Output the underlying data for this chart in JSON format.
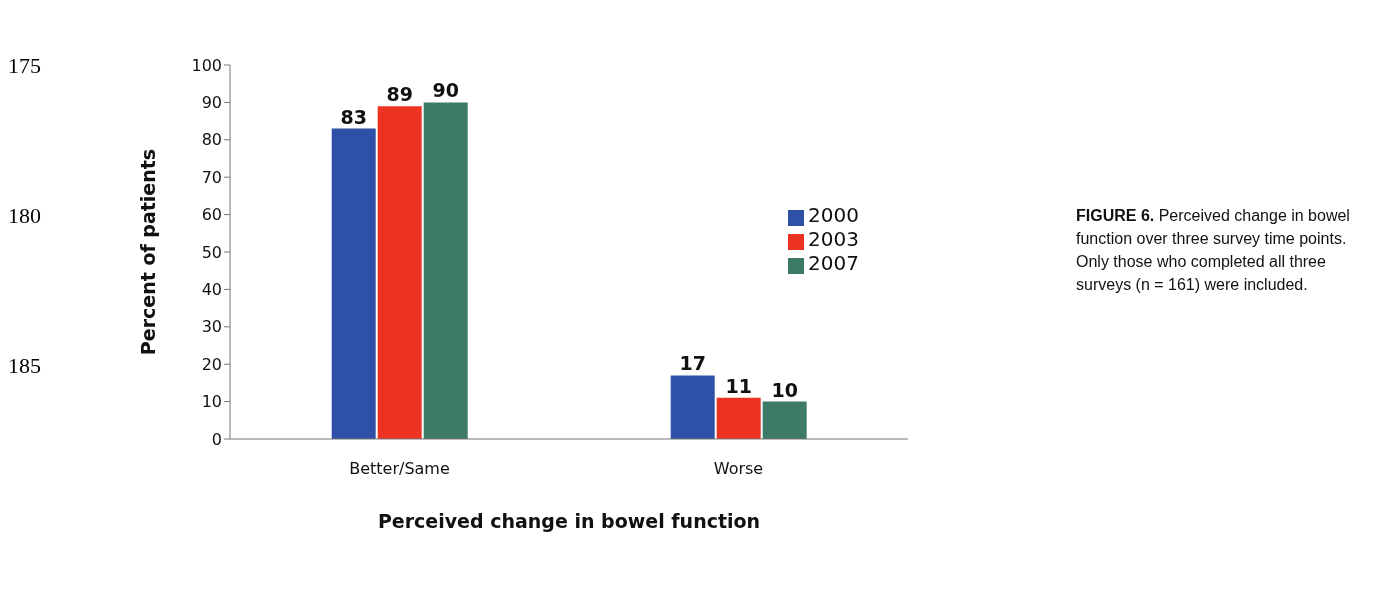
{
  "chart_data": {
    "type": "bar",
    "xlabel": "Perceived change in bowel function",
    "ylabel": "Percent of patients",
    "categories": [
      "Better/Same",
      "Worse"
    ],
    "series": [
      {
        "name": "2000",
        "color": "#2e50a6",
        "values": [
          83,
          17
        ]
      },
      {
        "name": "2003",
        "color": "#ec3322",
        "values": [
          89,
          11
        ]
      },
      {
        "name": "2007",
        "color": "#3d7a67",
        "values": [
          90,
          10
        ]
      }
    ],
    "ylim": [
      0,
      100
    ],
    "yticks": [
      0,
      10,
      20,
      30,
      40,
      50,
      60,
      70,
      80,
      90,
      100
    ],
    "grid": false,
    "legend": "right",
    "data_labels": true,
    "annotations": [
      "175",
      "180",
      "185",
      "FIGURE 6. Perceived change in bowel function over three survey time points. Only those who completed all three surveys (n = 161) were included."
    ]
  }
}
